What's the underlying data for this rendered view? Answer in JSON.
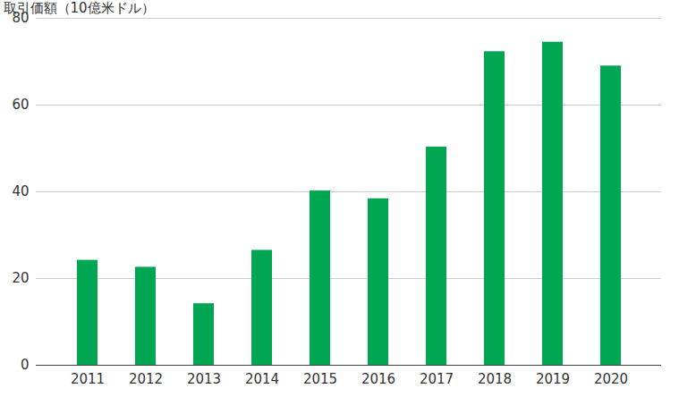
{
  "chart_data": {
    "type": "bar",
    "categories": [
      "2011",
      "2012",
      "2013",
      "2014",
      "2015",
      "2016",
      "2017",
      "2018",
      "2019",
      "2020"
    ],
    "values": [
      24.2,
      22.6,
      14.2,
      26.5,
      40.2,
      38.4,
      50.3,
      72.3,
      74.5,
      69.0
    ],
    "color": "#00a651",
    "ylabel": "取引価額（10億米ドル）",
    "ylim": [
      0,
      80
    ],
    "yticks": [
      0,
      20,
      40,
      60,
      80
    ],
    "grid": true
  }
}
